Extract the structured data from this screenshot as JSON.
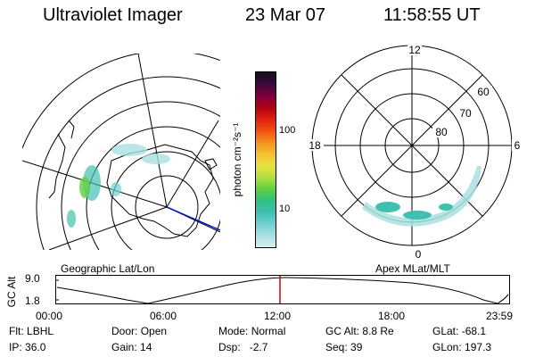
{
  "header": {
    "instrument": "Ultraviolet Imager",
    "date": "23 Mar 07",
    "time": "11:58:55 UT"
  },
  "colorbar": {
    "unit": "photon cm⁻²s⁻¹",
    "ticks": [
      "100",
      "10"
    ],
    "colors": [
      "#101020",
      "#3a0a3a",
      "#7a0040",
      "#b00010",
      "#e02010",
      "#f05010",
      "#f59020",
      "#f5c030",
      "#e8e040",
      "#b0e040",
      "#60d040",
      "#30c080",
      "#40c0b0",
      "#70d0d0",
      "#a8e0e0",
      "#d8f0f0"
    ]
  },
  "geo_map": {
    "label": "Geographic Lat/Lon"
  },
  "polar_map": {
    "label": "Apex MLat/MLT",
    "mlt_labels": {
      "top": "12",
      "left": "18",
      "right": "6",
      "bottom": "0"
    },
    "lat_labels": [
      "60",
      "70",
      "80"
    ]
  },
  "timeline": {
    "ylabel": "GC Alt",
    "yticks": [
      "9.0",
      "1.8"
    ],
    "xticks": [
      "00:00",
      "06:00",
      "12:00",
      "18:00",
      "23:59"
    ],
    "marker_color": "#d00000",
    "line_color": "#000000"
  },
  "status": {
    "flt_label": "Flt:",
    "flt_value": "LBHL",
    "ip_label": "IP:",
    "ip_value": "36.0",
    "door_label": "Door:",
    "door_value": "Open",
    "gain_label": "Gain:",
    "gain_value": "14",
    "mode_label": "Mode:",
    "mode_value": "Normal",
    "dsp_label": "Dsp:",
    "dsp_value": "-2.7",
    "gcalt_label": "GC Alt:",
    "gcalt_value": "8.8 Re",
    "seq_label": "Seq:",
    "seq_value": "39",
    "glat_label": "GLat:",
    "glat_value": "-68.1",
    "glon_label": "GLon:",
    "glon_value": "197.3"
  }
}
